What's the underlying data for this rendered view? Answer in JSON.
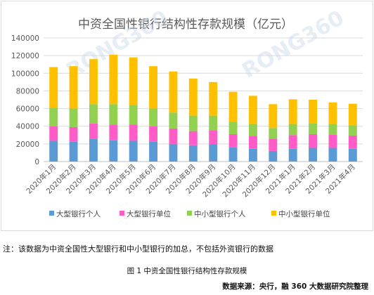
{
  "chart_data": {
    "type": "bar",
    "stacked": true,
    "title": "中资全国性银行结构性存款规模（亿元）",
    "categories": [
      "2020年1月",
      "2020年2月",
      "2020年3月",
      "2020年4月",
      "2020年5月",
      "2020年6月",
      "2020年7月",
      "2020年8月",
      "2020年9月",
      "2020年10月",
      "2020年11月",
      "2020年12月",
      "2021年1月",
      "2021年2月",
      "2021年3月",
      "2021年4月"
    ],
    "series": [
      {
        "name": "大型银行个人",
        "color": "#5b9bd5",
        "values": [
          23500,
          22500,
          26000,
          24000,
          23500,
          22500,
          20000,
          18500,
          19500,
          16000,
          14500,
          12000,
          14500,
          15500,
          15500,
          14500
        ]
      },
      {
        "name": "大型银行单位",
        "color": "#ff5cc8",
        "values": [
          16500,
          16500,
          17000,
          18000,
          18500,
          17500,
          17500,
          16000,
          16000,
          15000,
          14500,
          14000,
          15500,
          15500,
          15000,
          15000
        ]
      },
      {
        "name": "中小型银行个人",
        "color": "#92d050",
        "values": [
          21000,
          21000,
          22000,
          23000,
          22000,
          20000,
          18000,
          17500,
          16500,
          14000,
          13500,
          12000,
          12500,
          12500,
          12000,
          11500
        ]
      },
      {
        "name": "中小型银行单位",
        "color": "#ffc000",
        "values": [
          46000,
          48000,
          51000,
          56000,
          54000,
          48000,
          46500,
          42000,
          38000,
          34000,
          32000,
          27000,
          28000,
          26500,
          24500,
          24500
        ]
      }
    ],
    "ylim": [
      0,
      140000
    ],
    "yticks": [
      "0",
      "20000",
      "40000",
      "60000",
      "80000",
      "100000",
      "120000",
      "140000"
    ],
    "grid": true,
    "legend": "bottom"
  },
  "watermark": "RONG360",
  "footer": {
    "note": "注：该数据为中资全国性大型银行和中小型银行的加总，不包括外资银行的数据",
    "caption": "图 1 中资全国性银行结构性存款规模",
    "source": "数据来源：央行，融 360 大数据研究院整理"
  }
}
